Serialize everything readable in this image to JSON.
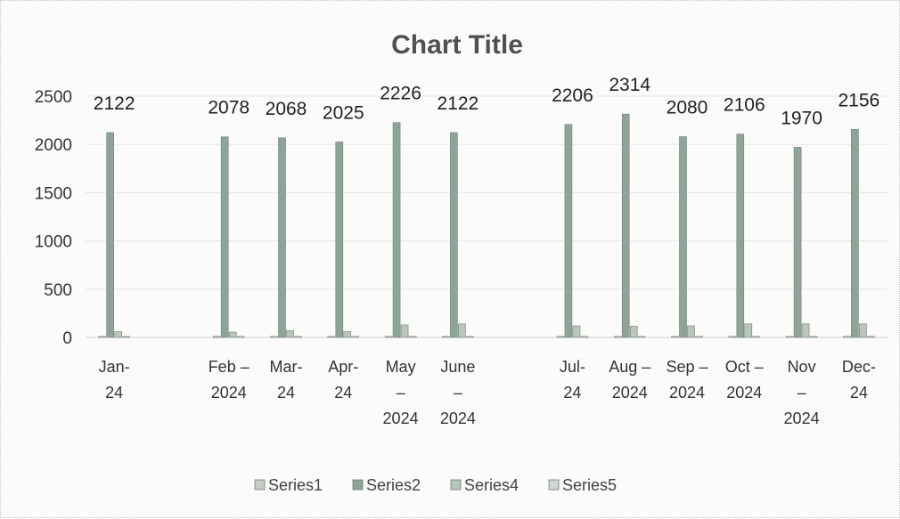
{
  "chart_data": {
    "type": "bar",
    "title": "Chart Title",
    "xlabel": "",
    "ylabel": "",
    "ylim": [
      0,
      2500
    ],
    "yticks": [
      0,
      500,
      1000,
      1500,
      2000,
      2500
    ],
    "grid": true,
    "legend_position": "bottom",
    "categories": [
      {
        "label": [
          "Jan-",
          "24"
        ]
      },
      {
        "label": []
      },
      {
        "label": [
          "Feb –",
          "2024"
        ]
      },
      {
        "label": [
          "Mar-",
          "24"
        ]
      },
      {
        "label": [
          "Apr-",
          "24"
        ]
      },
      {
        "label": [
          "May",
          "–",
          "2024"
        ]
      },
      {
        "label": [
          "June",
          "–",
          "2024"
        ]
      },
      {
        "label": []
      },
      {
        "label": [
          "Jul-",
          "24"
        ]
      },
      {
        "label": [
          "Aug –",
          "2024"
        ]
      },
      {
        "label": [
          "Sep –",
          "2024"
        ]
      },
      {
        "label": [
          "Oct –",
          "2024"
        ]
      },
      {
        "label": [
          "Nov",
          "–",
          "2024"
        ]
      },
      {
        "label": [
          "Dec-",
          "24"
        ]
      }
    ],
    "series": [
      {
        "name": "Series1",
        "color": "#c6cdc7",
        "values": [
          10,
          null,
          10,
          10,
          10,
          10,
          10,
          null,
          10,
          10,
          10,
          10,
          10,
          10
        ]
      },
      {
        "name": "Series2",
        "color": "#8fa498",
        "values": [
          2122,
          null,
          2078,
          2068,
          2025,
          2226,
          2122,
          null,
          2206,
          2314,
          2080,
          2106,
          1970,
          2156
        ]
      },
      {
        "name": "Series4",
        "color": "#b9c6bb",
        "values": [
          60,
          null,
          55,
          70,
          60,
          130,
          140,
          null,
          120,
          115,
          120,
          140,
          140,
          140
        ]
      },
      {
        "name": "Series5",
        "color": "#d2d6d2",
        "values": [
          10,
          null,
          10,
          10,
          10,
          10,
          10,
          null,
          10,
          10,
          10,
          10,
          10,
          10
        ]
      }
    ],
    "data_labels": [
      "2122",
      "",
      "2078",
      "2068",
      "2025",
      "2226",
      "2122",
      "",
      "2206",
      "2314",
      "2080",
      "2106",
      "1970",
      "2156"
    ]
  }
}
